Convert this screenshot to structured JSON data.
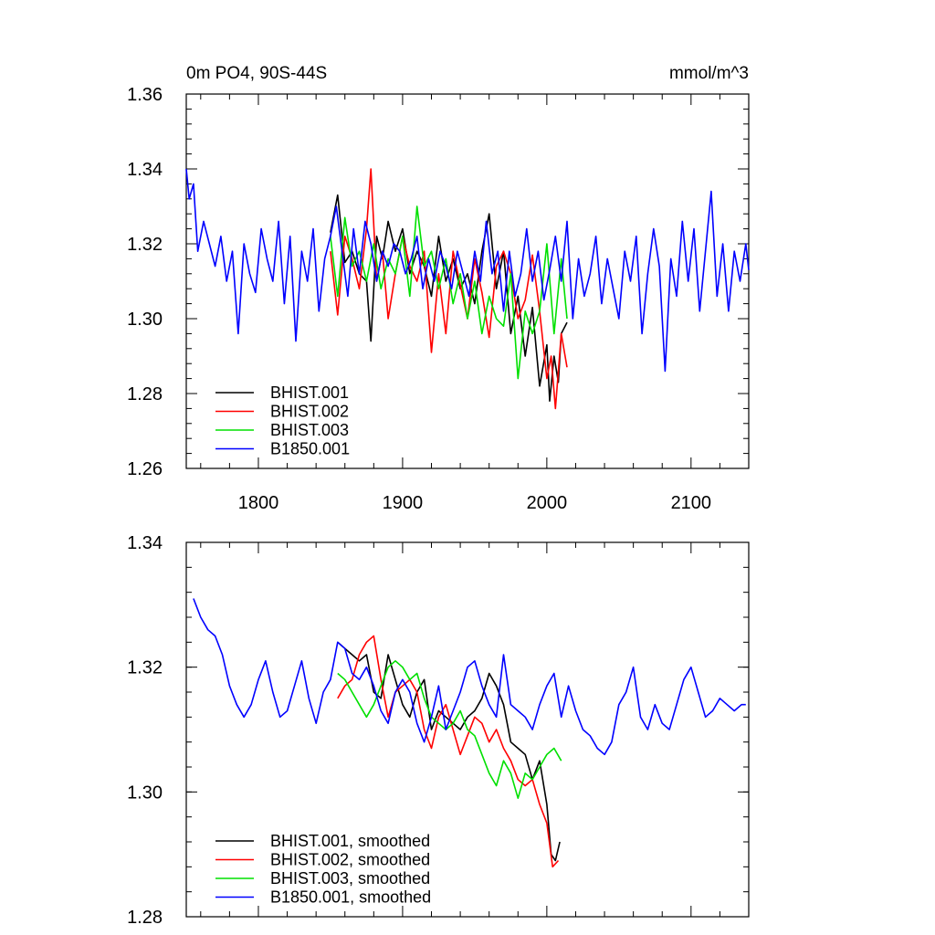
{
  "chart_data": [
    {
      "type": "line",
      "title": "0m PO4, 90S-44S",
      "units": "mmol/m^3",
      "xlim": [
        1750,
        2140
      ],
      "ylim": [
        1.26,
        1.36
      ],
      "yticks": [
        "1.26",
        "1.28",
        "1.30",
        "1.32",
        "1.34",
        "1.36"
      ],
      "xticks": [
        "1800",
        "1900",
        "2000",
        "2100"
      ],
      "legend_position": "bottom-left",
      "series": [
        {
          "name": "BHIST.001",
          "color": "#000000",
          "x": [
            1850,
            1855,
            1860,
            1865,
            1870,
            1875,
            1878,
            1882,
            1886,
            1890,
            1895,
            1900,
            1905,
            1910,
            1915,
            1920,
            1925,
            1930,
            1935,
            1940,
            1945,
            1950,
            1955,
            1960,
            1965,
            1970,
            1975,
            1980,
            1985,
            1990,
            1995,
            2000,
            2002,
            2005,
            2008,
            2010,
            2014
          ],
          "y": [
            1.323,
            1.333,
            1.315,
            1.318,
            1.312,
            1.31,
            1.294,
            1.322,
            1.316,
            1.326,
            1.318,
            1.324,
            1.312,
            1.318,
            1.314,
            1.306,
            1.322,
            1.31,
            1.316,
            1.308,
            1.312,
            1.304,
            1.318,
            1.328,
            1.308,
            1.318,
            1.296,
            1.306,
            1.29,
            1.303,
            1.282,
            1.293,
            1.278,
            1.29,
            1.283,
            1.296,
            1.299
          ]
        },
        {
          "name": "BHIST.002",
          "color": "#ff0000",
          "x": [
            1850,
            1855,
            1860,
            1865,
            1870,
            1875,
            1878,
            1882,
            1886,
            1890,
            1895,
            1900,
            1905,
            1910,
            1915,
            1920,
            1925,
            1930,
            1935,
            1940,
            1945,
            1950,
            1955,
            1960,
            1965,
            1970,
            1975,
            1980,
            1985,
            1990,
            1995,
            2000,
            2003,
            2006,
            2010,
            2014
          ],
          "y": [
            1.318,
            1.301,
            1.322,
            1.316,
            1.308,
            1.324,
            1.34,
            1.31,
            1.318,
            1.3,
            1.312,
            1.322,
            1.314,
            1.31,
            1.318,
            1.291,
            1.312,
            1.296,
            1.318,
            1.309,
            1.3,
            1.316,
            1.307,
            1.295,
            1.314,
            1.318,
            1.312,
            1.3,
            1.305,
            1.317,
            1.302,
            1.284,
            1.29,
            1.276,
            1.296,
            1.287
          ]
        },
        {
          "name": "BHIST.003",
          "color": "#00e000",
          "x": [
            1850,
            1855,
            1860,
            1865,
            1870,
            1875,
            1880,
            1885,
            1890,
            1895,
            1900,
            1905,
            1910,
            1915,
            1920,
            1925,
            1930,
            1935,
            1940,
            1945,
            1950,
            1955,
            1960,
            1965,
            1970,
            1975,
            1980,
            1985,
            1990,
            1995,
            2000,
            2005,
            2010,
            2014
          ],
          "y": [
            1.322,
            1.306,
            1.327,
            1.314,
            1.318,
            1.31,
            1.32,
            1.308,
            1.316,
            1.312,
            1.322,
            1.306,
            1.33,
            1.314,
            1.318,
            1.308,
            1.316,
            1.304,
            1.312,
            1.3,
            1.31,
            1.296,
            1.306,
            1.3,
            1.298,
            1.312,
            1.284,
            1.302,
            1.296,
            1.302,
            1.32,
            1.296,
            1.316,
            1.3
          ]
        },
        {
          "name": "B1850.001",
          "color": "#0000ff",
          "x": [
            1750,
            1752,
            1755,
            1758,
            1762,
            1766,
            1770,
            1774,
            1778,
            1782,
            1786,
            1790,
            1794,
            1798,
            1802,
            1806,
            1810,
            1814,
            1818,
            1822,
            1826,
            1830,
            1834,
            1838,
            1842,
            1846,
            1850,
            1854,
            1858,
            1862,
            1866,
            1870,
            1874,
            1878,
            1882,
            1886,
            1890,
            1894,
            1898,
            1902,
            1906,
            1910,
            1914,
            1918,
            1922,
            1926,
            1930,
            1934,
            1938,
            1942,
            1946,
            1950,
            1954,
            1958,
            1962,
            1966,
            1970,
            1974,
            1978,
            1982,
            1986,
            1990,
            1994,
            1998,
            2002,
            2006,
            2010,
            2014,
            2018,
            2022,
            2026,
            2030,
            2034,
            2038,
            2042,
            2046,
            2050,
            2054,
            2058,
            2062,
            2066,
            2070,
            2074,
            2078,
            2082,
            2086,
            2090,
            2094,
            2098,
            2102,
            2106,
            2110,
            2114,
            2118,
            2122,
            2126,
            2130,
            2134,
            2138,
            2140
          ],
          "y": [
            1.34,
            1.332,
            1.336,
            1.318,
            1.326,
            1.32,
            1.314,
            1.322,
            1.31,
            1.318,
            1.296,
            1.32,
            1.312,
            1.307,
            1.324,
            1.316,
            1.31,
            1.326,
            1.304,
            1.322,
            1.294,
            1.318,
            1.31,
            1.324,
            1.302,
            1.316,
            1.322,
            1.33,
            1.318,
            1.306,
            1.324,
            1.312,
            1.326,
            1.32,
            1.31,
            1.318,
            1.314,
            1.32,
            1.318,
            1.312,
            1.316,
            1.322,
            1.308,
            1.316,
            1.31,
            1.318,
            1.314,
            1.308,
            1.318,
            1.312,
            1.306,
            1.318,
            1.31,
            1.326,
            1.312,
            1.318,
            1.302,
            1.318,
            1.306,
            1.312,
            1.324,
            1.31,
            1.318,
            1.305,
            1.313,
            1.322,
            1.31,
            1.326,
            1.3,
            1.316,
            1.306,
            1.312,
            1.322,
            1.304,
            1.316,
            1.308,
            1.3,
            1.318,
            1.31,
            1.322,
            1.296,
            1.312,
            1.324,
            1.314,
            1.286,
            1.316,
            1.306,
            1.326,
            1.31,
            1.324,
            1.302,
            1.318,
            1.334,
            1.306,
            1.32,
            1.302,
            1.318,
            1.31,
            1.32,
            1.313
          ]
        }
      ]
    },
    {
      "type": "line",
      "xlim": [
        1750,
        2140
      ],
      "ylim": [
        1.28,
        1.34
      ],
      "yticks": [
        "1.28",
        "1.30",
        "1.32",
        "1.34"
      ],
      "legend_position": "bottom-left",
      "series": [
        {
          "name": "BHIST.001, smoothed",
          "color": "#000000",
          "x": [
            1855,
            1860,
            1865,
            1870,
            1875,
            1880,
            1885,
            1890,
            1895,
            1900,
            1905,
            1910,
            1915,
            1920,
            1925,
            1930,
            1935,
            1940,
            1945,
            1950,
            1955,
            1960,
            1965,
            1970,
            1975,
            1980,
            1985,
            1990,
            1995,
            2000,
            2003,
            2006,
            2009
          ],
          "y": [
            1.324,
            1.323,
            1.322,
            1.321,
            1.322,
            1.316,
            1.315,
            1.322,
            1.318,
            1.314,
            1.312,
            1.316,
            1.318,
            1.31,
            1.313,
            1.312,
            1.311,
            1.31,
            1.312,
            1.313,
            1.315,
            1.319,
            1.317,
            1.314,
            1.308,
            1.307,
            1.306,
            1.302,
            1.305,
            1.298,
            1.29,
            1.289,
            1.292
          ]
        },
        {
          "name": "BHIST.002, smoothed",
          "color": "#ff0000",
          "x": [
            1855,
            1860,
            1865,
            1870,
            1875,
            1880,
            1885,
            1890,
            1895,
            1900,
            1905,
            1910,
            1915,
            1920,
            1925,
            1930,
            1935,
            1940,
            1945,
            1950,
            1955,
            1960,
            1965,
            1970,
            1975,
            1980,
            1985,
            1990,
            1995,
            2000,
            2004,
            2008
          ],
          "y": [
            1.315,
            1.317,
            1.318,
            1.322,
            1.324,
            1.325,
            1.318,
            1.312,
            1.316,
            1.317,
            1.318,
            1.316,
            1.31,
            1.307,
            1.312,
            1.314,
            1.31,
            1.306,
            1.309,
            1.312,
            1.311,
            1.308,
            1.31,
            1.307,
            1.305,
            1.302,
            1.301,
            1.302,
            1.298,
            1.295,
            1.288,
            1.289
          ]
        },
        {
          "name": "BHIST.003, smoothed",
          "color": "#00e000",
          "x": [
            1855,
            1860,
            1865,
            1870,
            1875,
            1880,
            1885,
            1890,
            1895,
            1900,
            1905,
            1910,
            1915,
            1920,
            1925,
            1930,
            1935,
            1940,
            1945,
            1950,
            1955,
            1960,
            1965,
            1970,
            1975,
            1980,
            1985,
            1990,
            1995,
            2000,
            2005,
            2010
          ],
          "y": [
            1.319,
            1.318,
            1.316,
            1.314,
            1.312,
            1.314,
            1.317,
            1.32,
            1.321,
            1.32,
            1.318,
            1.319,
            1.315,
            1.312,
            1.311,
            1.31,
            1.311,
            1.313,
            1.31,
            1.309,
            1.306,
            1.303,
            1.301,
            1.305,
            1.303,
            1.299,
            1.303,
            1.302,
            1.304,
            1.306,
            1.307,
            1.305
          ]
        },
        {
          "name": "B1850.001, smoothed",
          "color": "#0000ff",
          "x": [
            1755,
            1760,
            1765,
            1770,
            1775,
            1780,
            1785,
            1790,
            1795,
            1800,
            1805,
            1810,
            1815,
            1820,
            1825,
            1830,
            1835,
            1840,
            1845,
            1850,
            1855,
            1860,
            1865,
            1870,
            1875,
            1880,
            1885,
            1890,
            1895,
            1900,
            1905,
            1910,
            1915,
            1920,
            1925,
            1930,
            1935,
            1940,
            1945,
            1950,
            1955,
            1960,
            1965,
            1970,
            1975,
            1980,
            1985,
            1990,
            1995,
            2000,
            2005,
            2010,
            2015,
            2020,
            2025,
            2030,
            2035,
            2040,
            2045,
            2050,
            2055,
            2060,
            2065,
            2070,
            2075,
            2080,
            2085,
            2090,
            2095,
            2100,
            2105,
            2110,
            2115,
            2120,
            2125,
            2130,
            2135,
            2138
          ],
          "y": [
            1.331,
            1.328,
            1.326,
            1.325,
            1.322,
            1.317,
            1.314,
            1.312,
            1.314,
            1.318,
            1.321,
            1.316,
            1.312,
            1.313,
            1.317,
            1.321,
            1.315,
            1.311,
            1.316,
            1.318,
            1.324,
            1.323,
            1.319,
            1.318,
            1.32,
            1.317,
            1.313,
            1.311,
            1.316,
            1.318,
            1.316,
            1.311,
            1.308,
            1.312,
            1.317,
            1.31,
            1.313,
            1.316,
            1.32,
            1.321,
            1.317,
            1.314,
            1.312,
            1.322,
            1.314,
            1.313,
            1.312,
            1.31,
            1.314,
            1.317,
            1.319,
            1.312,
            1.317,
            1.313,
            1.31,
            1.309,
            1.307,
            1.306,
            1.308,
            1.314,
            1.316,
            1.32,
            1.312,
            1.31,
            1.314,
            1.311,
            1.31,
            1.314,
            1.318,
            1.32,
            1.316,
            1.312,
            1.313,
            1.315,
            1.314,
            1.313,
            1.314,
            1.314
          ]
        }
      ]
    }
  ]
}
